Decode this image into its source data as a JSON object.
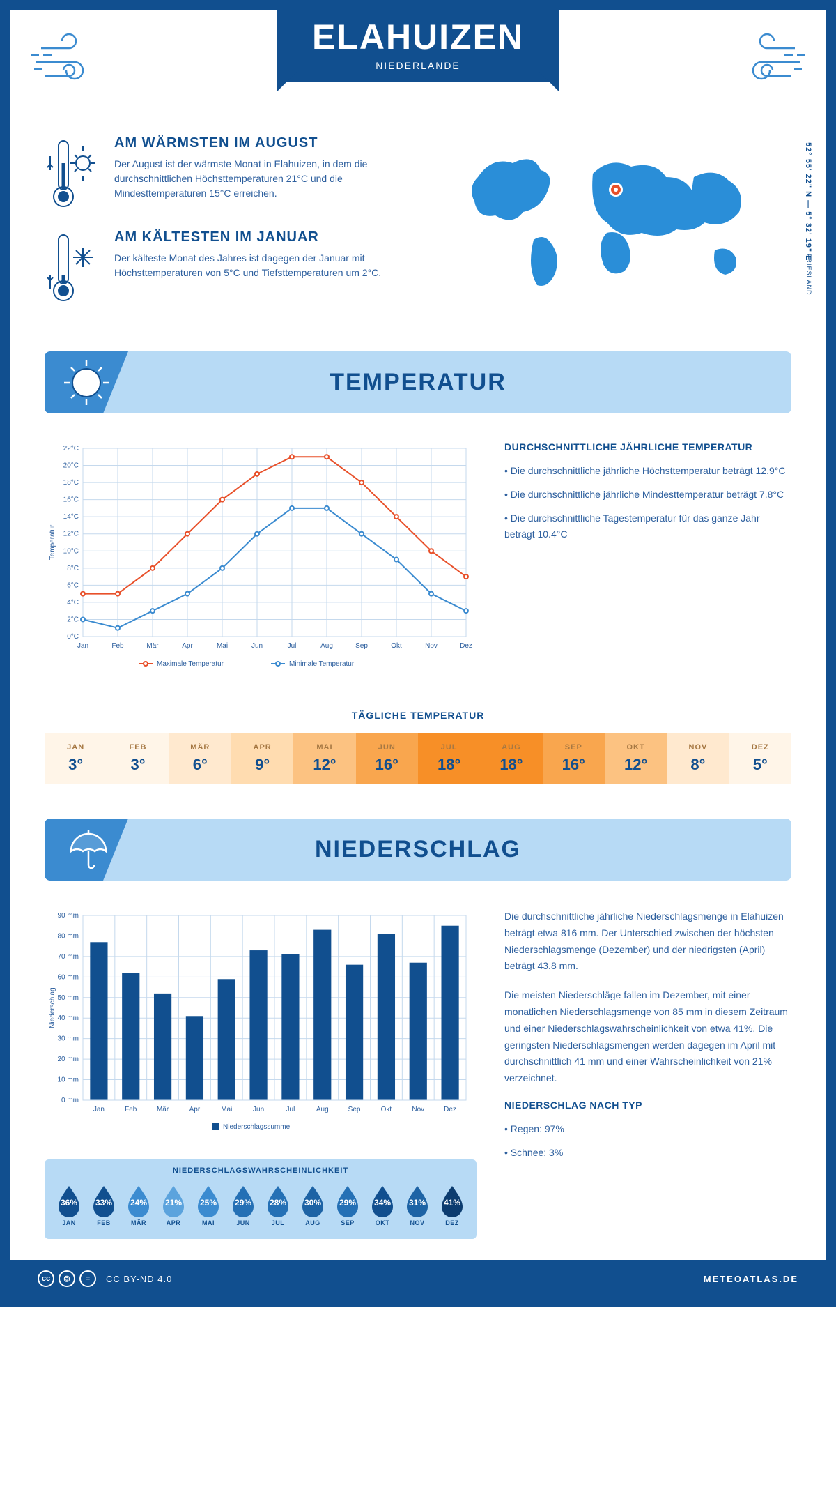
{
  "header": {
    "title": "ELAHUIZEN",
    "subtitle": "NIEDERLANDE"
  },
  "map": {
    "coordinates": "52° 55' 22\" N — 5° 32' 19\" E",
    "region": "FRIESLAND",
    "location_fill": "#2a8ed8",
    "marker_color": "#e8502a"
  },
  "warmest": {
    "title": "AM WÄRMSTEN IM AUGUST",
    "text": "Der August ist der wärmste Monat in Elahuizen, in dem die durchschnittlichen Höchsttemperaturen 21°C und die Mindesttemperaturen 15°C erreichen."
  },
  "coldest": {
    "title": "AM KÄLTESTEN IM JANUAR",
    "text": "Der kälteste Monat des Jahres ist dagegen der Januar mit Höchsttemperaturen von 5°C und Tiefsttemperaturen um 2°C."
  },
  "sections": {
    "temperature": "TEMPERATUR",
    "precipitation": "NIEDERSCHLAG"
  },
  "temp_chart": {
    "type": "line",
    "months": [
      "Jan",
      "Feb",
      "Mär",
      "Apr",
      "Mai",
      "Jun",
      "Jul",
      "Aug",
      "Sep",
      "Okt",
      "Nov",
      "Dez"
    ],
    "max_series": [
      5,
      5,
      8,
      12,
      16,
      19,
      21,
      21,
      18,
      14,
      10,
      7
    ],
    "min_series": [
      2,
      1,
      3,
      5,
      8,
      12,
      15,
      15,
      12,
      9,
      5,
      3
    ],
    "max_color": "#e8502a",
    "min_color": "#3b8bd0",
    "ylim": [
      0,
      22
    ],
    "ytick_step": 2,
    "grid_color": "#c5d9ed",
    "y_label": "Temperatur",
    "y_unit": "°C",
    "legend_max": "Maximale Temperatur",
    "legend_min": "Minimale Temperatur",
    "line_width": 2,
    "marker_size": 3,
    "label_fontsize": 10
  },
  "temp_info": {
    "title": "DURCHSCHNITTLICHE JÄHRLICHE TEMPERATUR",
    "bullets": [
      "• Die durchschnittliche jährliche Höchsttemperatur beträgt 12.9°C",
      "• Die durchschnittliche jährliche Mindesttemperatur beträgt 7.8°C",
      "• Die durchschnittliche Tagestemperatur für das ganze Jahr beträgt 10.4°C"
    ]
  },
  "daily_temp": {
    "title": "TÄGLICHE TEMPERATUR",
    "months": [
      "JAN",
      "FEB",
      "MÄR",
      "APR",
      "MAI",
      "JUN",
      "JUL",
      "AUG",
      "SEP",
      "OKT",
      "NOV",
      "DEZ"
    ],
    "values": [
      "3°",
      "3°",
      "6°",
      "9°",
      "12°",
      "16°",
      "18°",
      "18°",
      "16°",
      "12°",
      "8°",
      "5°"
    ],
    "colors": [
      "#fff5e8",
      "#fff5e8",
      "#ffe9cf",
      "#ffdcb0",
      "#fcc281",
      "#f9a64e",
      "#f78f27",
      "#f78f27",
      "#f9a64e",
      "#fcc281",
      "#ffe9cf",
      "#fff5e8"
    ]
  },
  "precip_chart": {
    "type": "bar",
    "months": [
      "Jan",
      "Feb",
      "Mär",
      "Apr",
      "Mai",
      "Jun",
      "Jul",
      "Aug",
      "Sep",
      "Okt",
      "Nov",
      "Dez"
    ],
    "values": [
      77,
      62,
      52,
      41,
      59,
      73,
      71,
      83,
      66,
      81,
      67,
      85
    ],
    "bar_color": "#114f8f",
    "ylim": [
      0,
      90
    ],
    "ytick_step": 10,
    "grid_color": "#c5d9ed",
    "y_label": "Niederschlag",
    "y_unit": " mm",
    "legend": "Niederschlagssumme",
    "bar_width": 0.55,
    "label_fontsize": 10
  },
  "precip_info": {
    "para1": "Die durchschnittliche jährliche Niederschlagsmenge in Elahuizen beträgt etwa 816 mm. Der Unterschied zwischen der höchsten Niederschlagsmenge (Dezember) und der niedrigsten (April) beträgt 43.8 mm.",
    "para2": "Die meisten Niederschläge fallen im Dezember, mit einer monatlichen Niederschlagsmenge von 85 mm in diesem Zeitraum und einer Niederschlagswahrscheinlichkeit von etwa 41%. Die geringsten Niederschlagsmengen werden dagegen im April mit durchschnittlich 41 mm und einer Wahrscheinlichkeit von 21% verzeichnet.",
    "type_title": "NIEDERSCHLAG NACH TYP",
    "type_bullets": [
      "• Regen: 97%",
      "• Schnee: 3%"
    ]
  },
  "precip_prob": {
    "title": "NIEDERSCHLAGSWAHRSCHEINLICHKEIT",
    "months": [
      "JAN",
      "FEB",
      "MÄR",
      "APR",
      "MAI",
      "JUN",
      "JUL",
      "AUG",
      "SEP",
      "OKT",
      "NOV",
      "DEZ"
    ],
    "values": [
      "36%",
      "33%",
      "24%",
      "21%",
      "25%",
      "29%",
      "28%",
      "30%",
      "29%",
      "34%",
      "31%",
      "41%"
    ],
    "colors": [
      "#114f8f",
      "#114f8f",
      "#3b8bd0",
      "#5ba3dd",
      "#3b8bd0",
      "#2470b5",
      "#2470b5",
      "#1d63a5",
      "#2470b5",
      "#114f8f",
      "#1d63a5",
      "#0c3c6f"
    ]
  },
  "footer": {
    "license": "CC BY-ND 4.0",
    "site": "METEOATLAS.DE"
  }
}
